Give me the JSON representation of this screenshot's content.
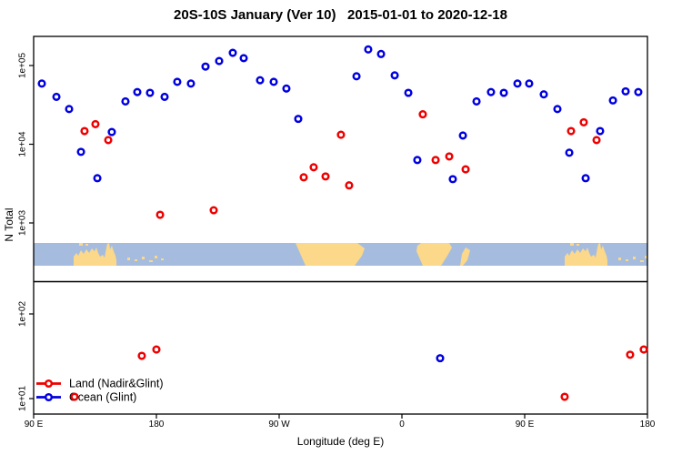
{
  "title": "20S-10S January (Ver 10)   2015-01-01 to 2020-12-18",
  "axes": {
    "y_label": "N Total",
    "x_label": "Longitude (deg E)",
    "y_ticks": [
      {
        "label": "1e+05",
        "value": 100000
      },
      {
        "label": "1e+04",
        "value": 10000
      },
      {
        "label": "1e+03",
        "value": 1000
      },
      {
        "label": "1e+02",
        "value": 100
      },
      {
        "label": "1e+01",
        "value": 10
      }
    ],
    "x_ticks": [
      {
        "label": "90 E",
        "lon": 90
      },
      {
        "label": "180",
        "lon": 180
      },
      {
        "label": "90 W",
        "lon": 270
      },
      {
        "label": "0",
        "lon": 360
      },
      {
        "label": "90 E",
        "lon": 450
      },
      {
        "label": "180",
        "lon": 540
      }
    ]
  },
  "legend": {
    "items": [
      {
        "label": "Land (Nadir&Glint)",
        "color": "#ee0000"
      },
      {
        "label": "Ocean (Glint)",
        "color": "#0000e0"
      }
    ]
  },
  "map": {
    "description": "World map strip of the 20S-10S latitude band (top=10S, bottom=20S)",
    "ocean_color": "#a6bcde",
    "land_color": "#fbd88a",
    "land_polygons": [
      "44,25 44,15 47,11 49,14 52,8 55,12 58,7 61,11 64,6 67,9 69,5 71,11 73,15 76,13 78,16 80,5 81,1 83,0 84,7 86,3 88,9 90,14 91,19 91,25",
      "288,0 356,0 364,6 361,14 353,25 299,25",
      "422,3 426,0 457,0 460,5 455,14 448,25 428,25 421,9",
      "475,5 480,8 477,19 472,25 469,25 471,12",
      "584,25 584,15 587,11 589,14 592,8 595,12 598,7 601,11 604,6 607,9 609,5 611,11 613,15 616,13 618,16 620,5 621,1 623,0 624,7 626,3 628,9 630,14 631,19 631,25"
    ],
    "land_specks": [
      [
        50,
        0,
        4,
        3
      ],
      [
        57,
        1,
        3,
        2
      ],
      [
        103,
        16,
        3,
        3
      ],
      [
        111,
        18,
        3,
        2
      ],
      [
        119,
        15,
        3,
        3
      ],
      [
        127,
        19,
        4,
        2
      ],
      [
        133,
        14,
        3,
        3
      ],
      [
        140,
        17,
        3,
        2
      ],
      [
        308,
        14,
        3,
        2
      ],
      [
        316,
        17,
        3,
        2
      ],
      [
        590,
        0,
        4,
        3
      ],
      [
        597,
        1,
        3,
        2
      ],
      [
        643,
        16,
        3,
        3
      ],
      [
        651,
        18,
        3,
        2
      ],
      [
        659,
        15,
        3,
        3
      ],
      [
        667,
        19,
        4,
        2
      ],
      [
        672,
        14,
        3,
        3
      ]
    ]
  },
  "chart_data": {
    "type": "scatter",
    "title": "20S-10S January (Ver 10)   2015-01-01 to 2020-12-18",
    "xlabel": "Longitude (deg E)",
    "ylabel": "N Total",
    "x_axis": {
      "range_deg": [
        90,
        540
      ],
      "note": "longitude axis starts at 90E and wraps eastward 450 degrees: 90E,180,90W,0,90E,180"
    },
    "y_axis": {
      "scale": "log10",
      "upper_panel_range": [
        1000,
        100000
      ],
      "lower_panel_range": [
        10,
        100
      ],
      "note": "axis interrupted by map strip between 1e+03 and 1e+02"
    },
    "legend_position": "bottom-left",
    "grid": false,
    "series": [
      {
        "id": "land",
        "name": "Land (Nadir&Glint)",
        "color": "#ee0000",
        "marker": "open-circle",
        "points": [
          [
            120,
            10.5
          ],
          [
            127.3,
            14700
          ],
          [
            135.3,
            18000
          ],
          [
            144.7,
            11300
          ],
          [
            169.3,
            32
          ],
          [
            180,
            38
          ],
          [
            182.7,
            1270
          ],
          [
            222,
            1450
          ],
          [
            288,
            3800
          ],
          [
            295.3,
            5100
          ],
          [
            304,
            3900
          ],
          [
            315.3,
            13200
          ],
          [
            321.3,
            3000
          ],
          [
            375.3,
            24000
          ],
          [
            384.7,
            6300
          ],
          [
            394.7,
            7000
          ],
          [
            406.7,
            4800
          ],
          [
            479.3,
            10.5
          ],
          [
            484,
            14700
          ],
          [
            493.3,
            19000
          ],
          [
            502.7,
            11300
          ],
          [
            527.3,
            33
          ],
          [
            537.3,
            38
          ]
        ]
      },
      {
        "id": "ocean",
        "name": "Ocean (Glint)",
        "color": "#0000e0",
        "marker": "open-circle",
        "points": [
          [
            96,
            59000
          ],
          [
            106.7,
            40000
          ],
          [
            116,
            28000
          ],
          [
            124.7,
            8000
          ],
          [
            136.7,
            3700
          ],
          [
            147.3,
            14300
          ],
          [
            157.3,
            35000
          ],
          [
            166,
            46000
          ],
          [
            175.3,
            45000
          ],
          [
            186,
            40000
          ],
          [
            195.3,
            62000
          ],
          [
            205.3,
            59000
          ],
          [
            216,
            97000
          ],
          [
            226,
            114000
          ],
          [
            236,
            145000
          ],
          [
            244,
            124000
          ],
          [
            256,
            65000
          ],
          [
            266,
            62000
          ],
          [
            275.3,
            51000
          ],
          [
            284,
            21000
          ],
          [
            326.7,
            73000
          ],
          [
            335.3,
            160000
          ],
          [
            344.7,
            140000
          ],
          [
            354.7,
            75000
          ],
          [
            364.7,
            45000
          ],
          [
            371.3,
            6300
          ],
          [
            388,
            30
          ],
          [
            397.3,
            3600
          ],
          [
            404.7,
            12900
          ],
          [
            414.7,
            35000
          ],
          [
            425.3,
            46000
          ],
          [
            434.7,
            45000
          ],
          [
            444.7,
            59000
          ],
          [
            453.3,
            59000
          ],
          [
            464,
            43000
          ],
          [
            474,
            28000
          ],
          [
            482.7,
            7800
          ],
          [
            494.7,
            3700
          ],
          [
            505.3,
            14700
          ],
          [
            514.7,
            36000
          ],
          [
            524,
            47000
          ],
          [
            533.3,
            46000
          ]
        ]
      }
    ]
  }
}
